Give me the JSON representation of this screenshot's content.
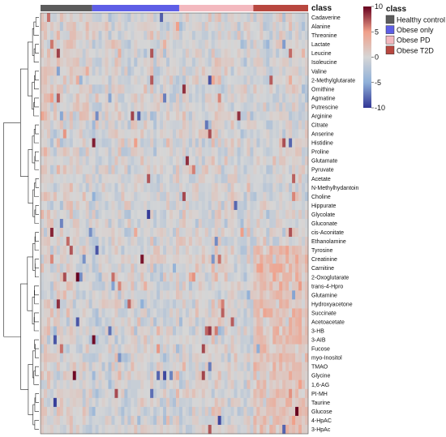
{
  "chart_data": {
    "type": "heatmap",
    "annotation_label": "class",
    "rows": [
      "Cadaverine",
      "Alanine",
      "Threonine",
      "Lactate",
      "Leucine",
      "Isoleucine",
      "Valine",
      "2-Methylglutarate",
      "Ornithine",
      "Agmatine",
      "Putrescine",
      "Arginine",
      "Citrate",
      "Anserine",
      "Histidine",
      "Proline",
      "Glutamate",
      "Pyruvate",
      "Acetate",
      "N-Methylhydantoin",
      "Choline",
      "Hippurate",
      "Glycolate",
      "Gluconate",
      "cis-Aconitate",
      "Ethanolamine",
      "Tyrosine",
      "Creatinine",
      "Carnitine",
      "2-Oxoglutarate",
      "trans-4-Hpro",
      "Glutamine",
      "Hydroxyacetone",
      "Succinate",
      "Acetoacetate",
      "3-HB",
      "3-AIB",
      "Fucose",
      "myo-Inositol",
      "TMAO",
      "Glycine",
      "1,6-AG",
      "PI-MH",
      "Taurine",
      "Glucose",
      "4-HpAC",
      "3-HpAc"
    ],
    "groups": [
      {
        "name": "Healthy control",
        "color": "#5c5c5c",
        "n": 16
      },
      {
        "name": "Obese only",
        "color": "#5e5ee6",
        "n": 27
      },
      {
        "name": "Obese PD",
        "color": "#f3b9bf",
        "n": 23
      },
      {
        "name": "Obese T2D",
        "color": "#b8473f",
        "n": 17
      }
    ],
    "colorbar": {
      "title": "class",
      "min": -10,
      "max": 10,
      "ticks": [
        10,
        5,
        0,
        -5,
        -10
      ],
      "colors": [
        "#313695",
        "#8fb0d8",
        "#d6d6d6",
        "#f0a08a",
        "#67001f"
      ]
    },
    "legend": {
      "title": "class",
      "placement": "top-right"
    }
  }
}
